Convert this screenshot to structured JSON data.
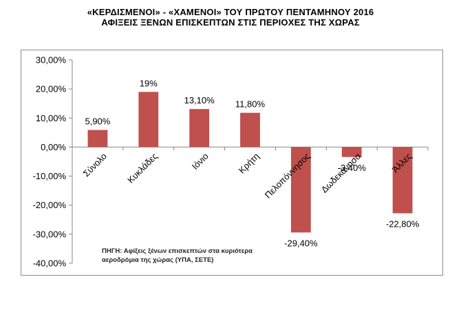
{
  "title_line1": "«ΚΕΡΔΙΣΜΕΝΟΙ» - «ΧΑΜΕΝΟΙ» ΤΟΥ ΠΡΩΤΟΥ ΠΕΝΤΑΜΗΝΟΥ 2016",
  "title_line2": "ΑΦΙΞΕΙΣ ΞΕΝΩΝ ΕΠΙΣΚΕΠΤΩΝ ΣΤΙΣ ΠΕΡΙΟΧΕΣ ΤΗΣ ΧΩΡΑΣ",
  "source_line1": "ΠΗΓΗ: Αφίξεις ξένων επισκεπτών στα κυριότερα",
  "source_line2": "αεροδρόμια της χώρας (ΥΠΑ, ΣΕΤΕ)",
  "bar_color": "#c0504d",
  "chart_data": {
    "type": "bar",
    "categories": [
      "Σύνολο",
      "Κυκλάδες",
      "Ιόνιο",
      "Κρήτη",
      "Πελοπόννησος",
      "Δωδεκάνησα",
      "Άλλες"
    ],
    "values": [
      5.9,
      19.0,
      13.1,
      11.8,
      -29.4,
      -3.4,
      -22.8
    ],
    "data_labels": [
      "5,90%",
      "19%",
      "13,10%",
      "11,80%",
      "-29,40%",
      "-3,40%",
      "-22,80%"
    ],
    "ylim": [
      -40,
      30
    ],
    "yticks": [
      30,
      20,
      10,
      0,
      -10,
      -20,
      -30,
      -40
    ],
    "ytick_labels": [
      "30,00%",
      "20,00%",
      "10,00%",
      "0,00%",
      "-10,00%",
      "-20,00%",
      "-30,00%",
      "-40,00%"
    ],
    "grid": false,
    "legend": "none"
  }
}
